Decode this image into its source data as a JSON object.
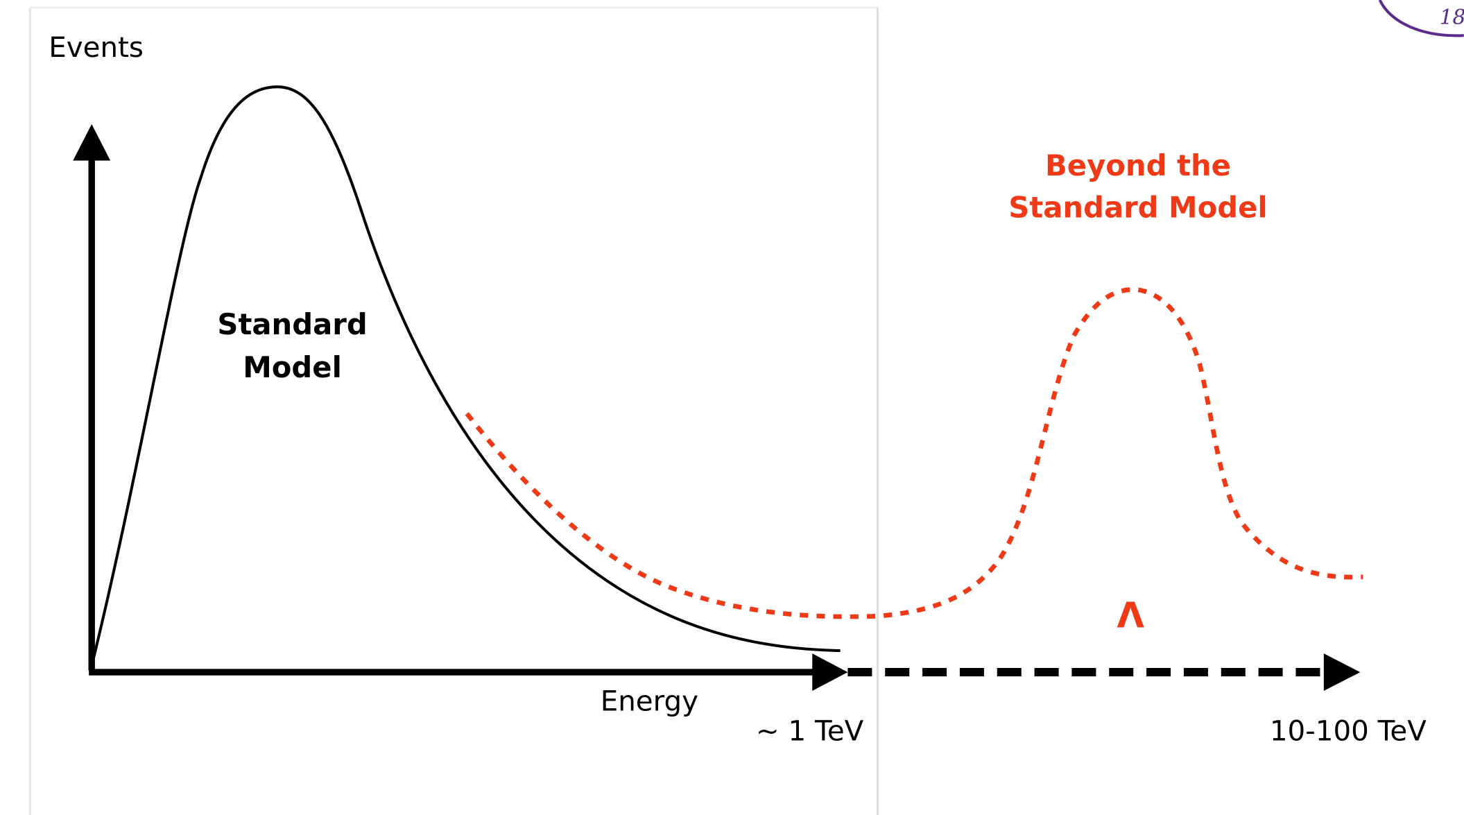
{
  "axes": {
    "y_label": "Events",
    "x_label": "Energy"
  },
  "regions": {
    "standard_model": {
      "lines": [
        "Standard",
        "Model"
      ]
    },
    "beyond_standard_model": {
      "lines": [
        "Beyond the",
        "Standard Model"
      ]
    }
  },
  "scale_symbol": "Λ",
  "energy_marks": [
    "~ 1 TeV",
    "10-100 TeV"
  ],
  "logo": {
    "text": "18"
  }
}
